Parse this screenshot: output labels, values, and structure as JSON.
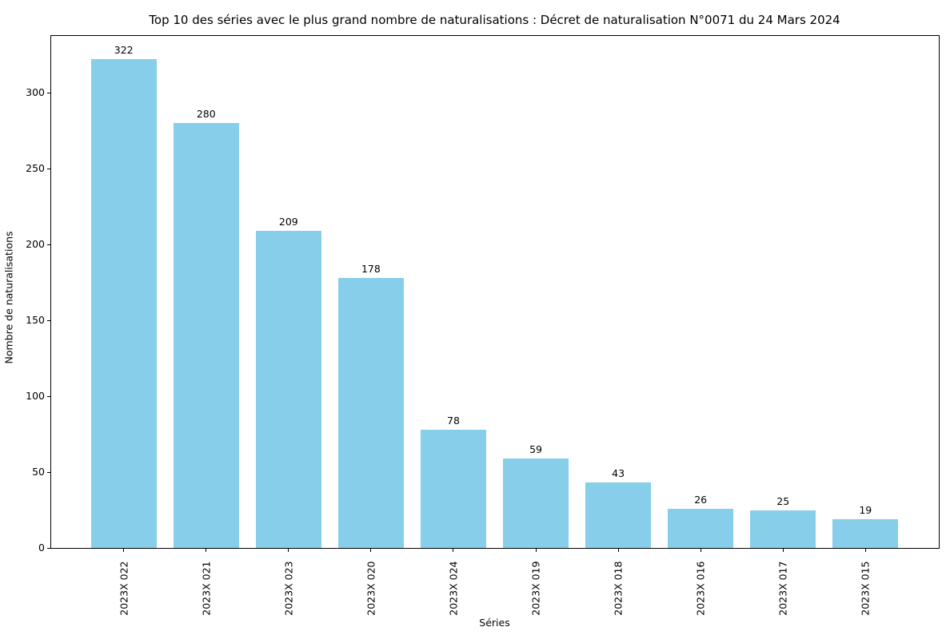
{
  "chart_data": {
    "type": "bar",
    "title": "Top 10 des séries avec le plus grand nombre de naturalisations : Décret de naturalisation N°0071 du 24 Mars 2024",
    "xlabel": "Séries",
    "ylabel": "Nombre de naturalisations",
    "categories": [
      "2023X 022",
      "2023X 021",
      "2023X 023",
      "2023X 020",
      "2023X 024",
      "2023X 019",
      "2023X 018",
      "2023X 016",
      "2023X 017",
      "2023X 015"
    ],
    "values": [
      322,
      280,
      209,
      178,
      78,
      59,
      43,
      26,
      25,
      19
    ],
    "yticks": [
      0,
      50,
      100,
      150,
      200,
      250,
      300
    ],
    "ylim": [
      0,
      338
    ],
    "grid": false,
    "legend_position": "none",
    "bar_value_labels_shown": true,
    "x_tick_rotation_degrees": 90,
    "colors": {
      "bar": "#87CEEB",
      "text": "#000000",
      "spine": "#000000",
      "background": "#ffffff"
    }
  }
}
